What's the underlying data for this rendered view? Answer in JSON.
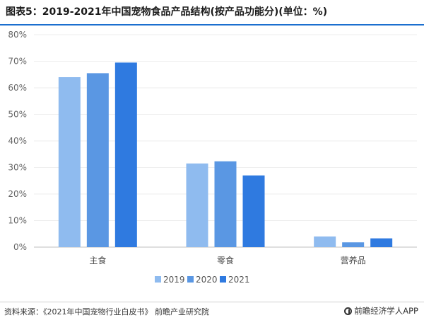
{
  "header": {
    "title": "图表5：2019-2021年中国宠物食品产品结构(按产品功能分)(单位：%)"
  },
  "chart_data": {
    "type": "bar",
    "categories": [
      "主食",
      "零食",
      "营养品"
    ],
    "series": [
      {
        "name": "2019",
        "values": [
          64.0,
          31.5,
          4.0
        ],
        "color": "#8fbbef"
      },
      {
        "name": "2020",
        "values": [
          65.5,
          32.3,
          1.8
        ],
        "color": "#5a97e3"
      },
      {
        "name": "2021",
        "values": [
          69.5,
          27.0,
          3.3
        ],
        "color": "#2f7ae0"
      }
    ],
    "ylim": [
      0,
      80
    ],
    "yticks": [
      "0%",
      "10%",
      "20%",
      "30%",
      "40%",
      "50%",
      "60%",
      "70%",
      "80%"
    ],
    "grid": true,
    "legend_position": "bottom-center"
  },
  "footer": {
    "source": "资料来源：《2021年中国宠物行业白皮书》 前瞻产业研究院",
    "brand": "前瞻经济学人APP",
    "brand_icon": "qianzhan-logo-icon"
  },
  "colors": {
    "title_underline": "#1b6fcf",
    "axis_text": "#666666"
  }
}
